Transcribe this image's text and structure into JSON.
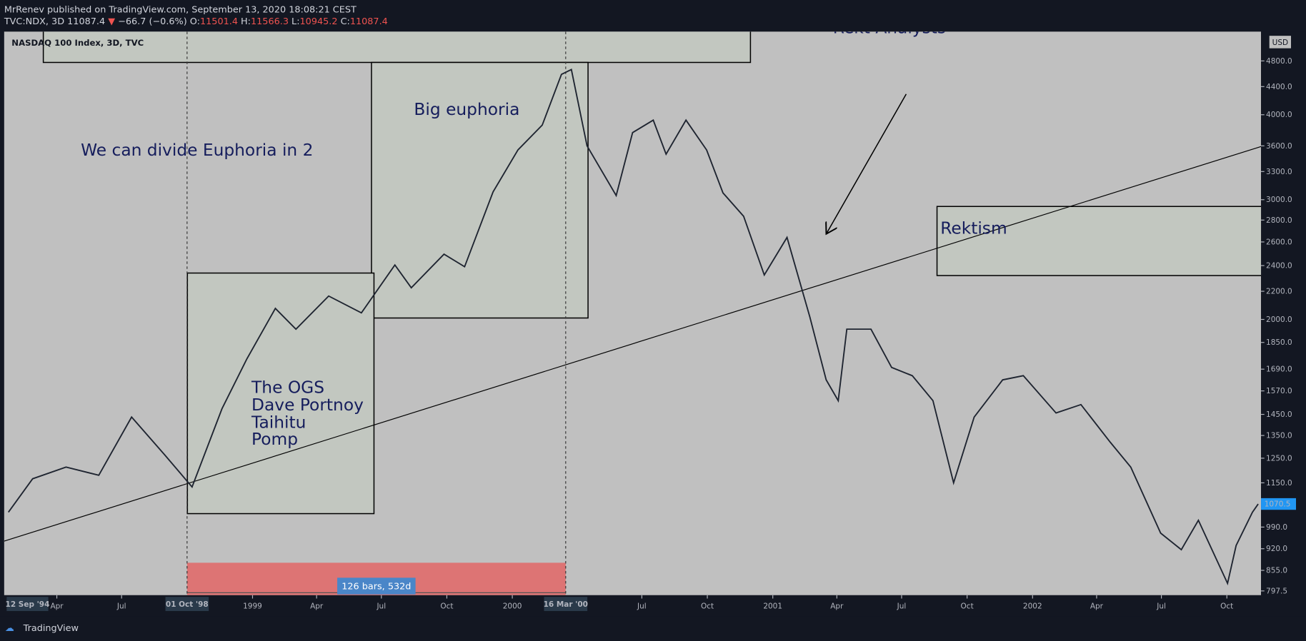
{
  "header": {
    "publisher": "MrRenev published on TradingView.com, September 13, 2020 18:08:21 CEST",
    "symbol": "TVC:NDX, 3D",
    "price": "11087.4",
    "arrow": "▼",
    "change": "−66.7 (−0.6%)",
    "o_label": "O:",
    "open": "11501.4",
    "h_label": "H:",
    "high": "11566.3",
    "l_label": "L:",
    "low": "10945.2",
    "c_label": "C:",
    "close": "11087.4"
  },
  "footer": {
    "brand": "TradingView"
  },
  "chart_data": {
    "type": "line",
    "title": "NASDAQ 100 Index, 3D, TVC",
    "currency": "USD",
    "log_scale": true,
    "x": [
      "1998-01-23",
      "1998-02-26",
      "1998-04-14",
      "1998-05-30",
      "1998-07-15",
      "1998-08-30",
      "1998-10-08",
      "1998-11-19",
      "1998-12-24",
      "1999-02-02",
      "1999-03-03",
      "1999-04-18",
      "1999-06-03",
      "1999-07-20",
      "1999-08-12",
      "1999-09-27",
      "1999-10-26",
      "1999-12-05",
      "2000-01-09",
      "2000-02-12",
      "2000-03-10",
      "2000-03-24",
      "2000-04-15",
      "2000-05-26",
      "2000-06-18",
      "2000-07-17",
      "2000-08-04",
      "2000-09-01",
      "2000-09-30",
      "2000-10-23",
      "2000-11-21",
      "2000-12-20",
      "2001-01-21",
      "2001-02-22",
      "2001-03-17",
      "2001-04-03",
      "2001-04-15",
      "2001-05-19",
      "2001-06-17",
      "2001-07-16",
      "2001-08-14",
      "2001-09-12",
      "2001-10-11",
      "2001-11-20",
      "2001-12-19",
      "2002-02-03",
      "2002-03-10",
      "2002-04-20",
      "2002-05-19",
      "2002-06-30",
      "2002-07-29",
      "2002-08-22",
      "2002-10-02",
      "2002-10-14",
      "2002-11-06",
      "2002-11-14"
    ],
    "series": [
      {
        "color": "#1e2430",
        "values": [
          1041,
          1166,
          1213,
          1180,
          1437,
          1266,
          1134,
          1478,
          1750,
          2076,
          1935,
          2165,
          2045,
          2405,
          2226,
          2495,
          2391,
          3080,
          3552,
          3862,
          4586,
          4662,
          3600,
          3042,
          3765,
          3928,
          3500,
          3928,
          3550,
          3070,
          2836,
          2325,
          2640,
          2017,
          1630,
          1519,
          1935,
          1935,
          1700,
          1653,
          1519,
          1150,
          1437,
          1630,
          1653,
          1457,
          1499,
          1320,
          1213,
          970,
          917,
          1013,
          818,
          930,
          1041,
          1070.5
        ]
      }
    ],
    "last_value": 1070.5,
    "xlim": [
      "1998-01-17",
      "2002-11-18"
    ],
    "ylim": [
      786,
      5300
    ],
    "yticks": [
      {
        "value": 797.5,
        "label": "797.5"
      },
      {
        "value": 855,
        "label": "855.0"
      },
      {
        "value": 920,
        "label": "920.0"
      },
      {
        "value": 990,
        "label": "990.0"
      },
      {
        "value": 1150,
        "label": "1150.0"
      },
      {
        "value": 1250,
        "label": "1250.0"
      },
      {
        "value": 1350,
        "label": "1350.0"
      },
      {
        "value": 1450,
        "label": "1450.0"
      },
      {
        "value": 1570,
        "label": "1570.0"
      },
      {
        "value": 1690,
        "label": "1690.0"
      },
      {
        "value": 1850,
        "label": "1850.0"
      },
      {
        "value": 2000,
        "label": "2000.0"
      },
      {
        "value": 2200,
        "label": "2200.0"
      },
      {
        "value": 2400,
        "label": "2400.0"
      },
      {
        "value": 2600,
        "label": "2600.0"
      },
      {
        "value": 2800,
        "label": "2800.0"
      },
      {
        "value": 3000,
        "label": "3000.0"
      },
      {
        "value": 3300,
        "label": "3300.0"
      },
      {
        "value": 3600,
        "label": "3600.0"
      },
      {
        "value": 4000,
        "label": "4000.0"
      },
      {
        "value": 4400,
        "label": "4400.0"
      },
      {
        "value": 4800,
        "label": "4800.0"
      }
    ],
    "xticks": [
      {
        "value": "1998-04-01",
        "label": "Apr"
      },
      {
        "value": "1998-07-01",
        "label": "Jul"
      },
      {
        "value": "1999-01-01",
        "label": "1999"
      },
      {
        "value": "1999-04-01",
        "label": "Apr"
      },
      {
        "value": "1999-07-01",
        "label": "Jul"
      },
      {
        "value": "1999-10-01",
        "label": "Oct"
      },
      {
        "value": "2000-01-01",
        "label": "2000"
      },
      {
        "value": "2000-07-01",
        "label": "Jul"
      },
      {
        "value": "2000-10-01",
        "label": "Oct"
      },
      {
        "value": "2001-01-01",
        "label": "2001"
      },
      {
        "value": "2001-04-01",
        "label": "Apr"
      },
      {
        "value": "2001-07-01",
        "label": "Jul"
      },
      {
        "value": "2001-10-01",
        "label": "Oct"
      },
      {
        "value": "2002-01-01",
        "label": "2002"
      },
      {
        "value": "2002-04-01",
        "label": "Apr"
      },
      {
        "value": "2002-07-01",
        "label": "Jul"
      },
      {
        "value": "2002-10-01",
        "label": "Oct"
      }
    ],
    "start_label": "12 Sep '94",
    "range_markers": [
      {
        "value": "1998-10-01",
        "label": "01 Oct '98"
      },
      {
        "value": "2000-03-16",
        "label": "16 Mar '00"
      }
    ],
    "range_label": "126 bars, 532d",
    "annotations": {
      "top_note": "Rekt Analysts",
      "divide": "We can divide Euphoria in 2",
      "big": "Big euphoria",
      "ogs": [
        "The OGS",
        "Dave Portnoy",
        "Taihitu",
        "Pomp"
      ],
      "rektism": "Rektism"
    }
  }
}
